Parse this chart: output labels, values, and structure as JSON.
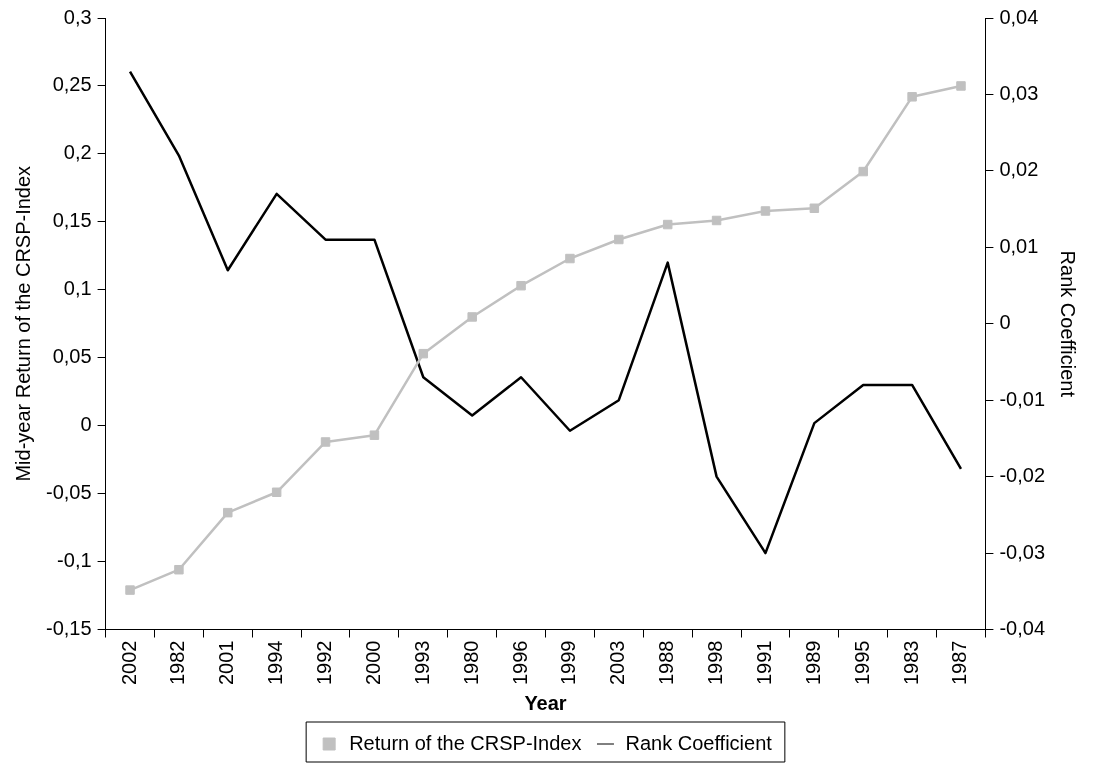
{
  "chart_data": {
    "type": "line",
    "xlabel": "Year",
    "ylabel": "Mid-year Return of the CRSP-Index",
    "y2label": "Rank Coefficient",
    "categories": [
      "2002",
      "1982",
      "2001",
      "1994",
      "1992",
      "2000",
      "1993",
      "1980",
      "1996",
      "1999",
      "2003",
      "1988",
      "1998",
      "1991",
      "1989",
      "1995",
      "1983",
      "1987"
    ],
    "series": [
      {
        "name": "Return of the CRSP-Index",
        "color": "#c0c0c0",
        "marker": "square",
        "values": [
          -0.121,
          -0.106,
          -0.064,
          -0.049,
          -0.012,
          -0.007,
          0.053,
          0.08,
          0.103,
          0.123,
          0.137,
          0.148,
          0.151,
          0.158,
          0.16,
          0.187,
          0.242,
          0.25
        ]
      },
      {
        "name": "Rank Coefficient",
        "color": "#000000",
        "marker": "none",
        "axis": "y2",
        "values": [
          0.033,
          0.022,
          0.007,
          0.017,
          0.011,
          0.011,
          -0.007,
          -0.012,
          -0.007,
          -0.014,
          -0.01,
          0.008,
          -0.02,
          -0.03,
          -0.013,
          -0.008,
          -0.008,
          -0.019
        ]
      }
    ],
    "ylim": [
      -0.15,
      0.3
    ],
    "yticks": [
      {
        "value": -0.15,
        "label": "-0,15"
      },
      {
        "value": -0.1,
        "label": "-0,1"
      },
      {
        "value": -0.05,
        "label": "-0,05"
      },
      {
        "value": 0,
        "label": "0"
      },
      {
        "value": 0.05,
        "label": "0,05"
      },
      {
        "value": 0.1,
        "label": "0,1"
      },
      {
        "value": 0.15,
        "label": "0,15"
      },
      {
        "value": 0.2,
        "label": "0,2"
      },
      {
        "value": 0.25,
        "label": "0,25"
      },
      {
        "value": 0.3,
        "label": "0,3"
      }
    ],
    "y2lim": [
      -0.04,
      0.04
    ],
    "y2ticks": [
      {
        "value": -0.04,
        "label": "-0,04"
      },
      {
        "value": -0.03,
        "label": "-0,03"
      },
      {
        "value": -0.02,
        "label": "-0,02"
      },
      {
        "value": -0.01,
        "label": "-0,01"
      },
      {
        "value": 0,
        "label": "0"
      },
      {
        "value": 0.01,
        "label": "0,01"
      },
      {
        "value": 0.02,
        "label": "0,02"
      },
      {
        "value": 0.03,
        "label": "0,03"
      },
      {
        "value": 0.04,
        "label": "0,04"
      }
    ],
    "grid": false,
    "legend": "bottom",
    "line_style": "solid"
  }
}
